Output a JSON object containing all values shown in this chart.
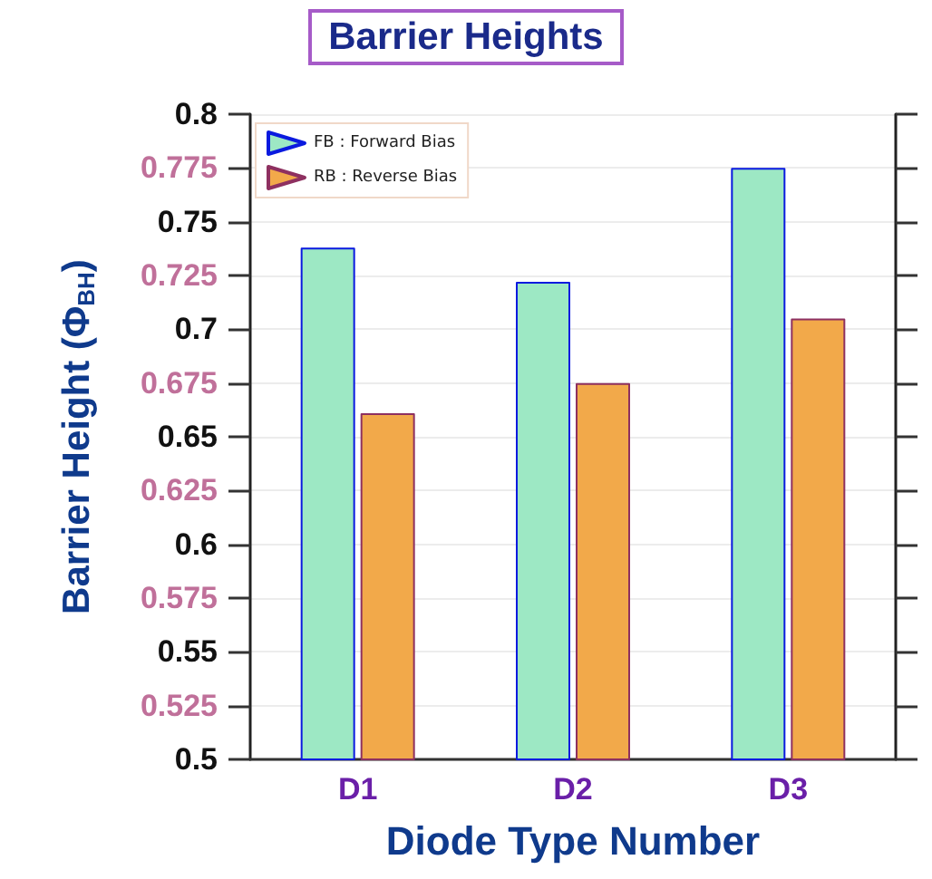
{
  "chart_data": {
    "type": "bar",
    "title": "Barrier Heights",
    "xlabel": "Diode Type Number",
    "ylabel": "Barrier Height (Φ$_{BH}$)",
    "categories": [
      "D1",
      "D2",
      "D3"
    ],
    "series": [
      {
        "name": "FB : Forward Bias",
        "color": "#9de8c4",
        "values": [
          0.738,
          0.722,
          0.775
        ]
      },
      {
        "name": "RB : Reverse Bias",
        "color": "#f2a94a",
        "values": [
          0.661,
          0.675,
          0.705
        ]
      }
    ],
    "ylim": [
      0.5,
      0.8
    ],
    "yticks": [
      0.5,
      0.525,
      0.55,
      0.575,
      0.6,
      0.625,
      0.65,
      0.675,
      0.7,
      0.725,
      0.75,
      0.775,
      0.8
    ],
    "grid": "y",
    "legend": "top left"
  }
}
